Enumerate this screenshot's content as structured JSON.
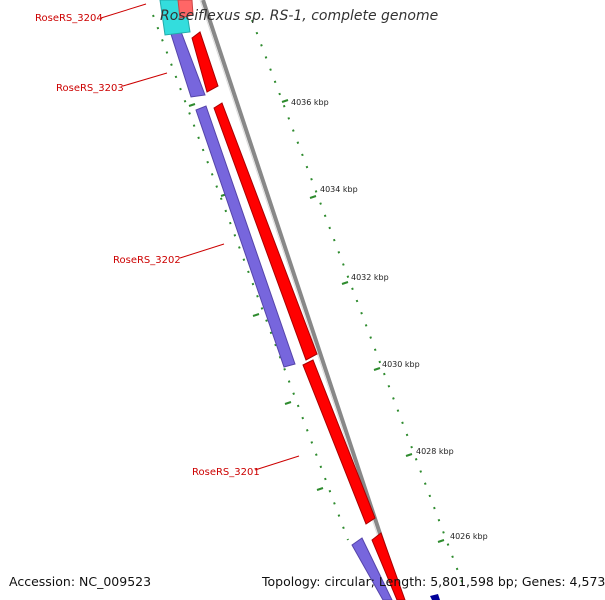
{
  "title": "Roseiflexus sp. RS-1, complete genome",
  "accession": "Accession: NC_009523",
  "summary": "Topology: circular; Length: 5,801,598 bp; Genes: 4,573",
  "colors": {
    "forward_cds": "#ff0000",
    "reverse_cds": "#7766dd",
    "other_gene": "#33dddd",
    "dark_gene": "#000099",
    "backbone": "#888888",
    "ticks": "#2e8b2e",
    "labels": "#cc0000"
  },
  "scale_labels": [
    {
      "id": "kbp-4036",
      "text": "4036 kbp"
    },
    {
      "id": "kbp-4034",
      "text": "4034 kbp"
    },
    {
      "id": "kbp-4032",
      "text": "4032 kbp"
    },
    {
      "id": "kbp-4030",
      "text": "4030 kbp"
    },
    {
      "id": "kbp-4028",
      "text": "4028 kbp"
    },
    {
      "id": "kbp-4026",
      "text": "4026 kbp"
    }
  ],
  "genes": [
    {
      "id": "RoseRS_3204",
      "label": "RoseRS_3204"
    },
    {
      "id": "RoseRS_3203",
      "label": "RoseRS_3203"
    },
    {
      "id": "RoseRS_3202",
      "label": "RoseRS_3202"
    },
    {
      "id": "RoseRS_3201",
      "label": "RoseRS_3201"
    }
  ]
}
